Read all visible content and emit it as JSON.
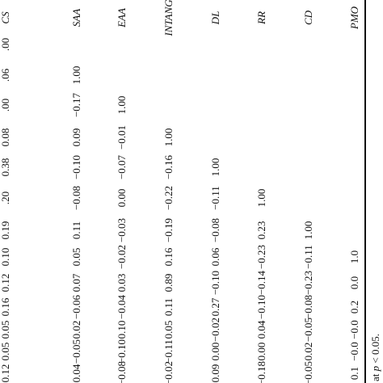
{
  "table": {
    "header": [
      "CS",
      "SAA",
      "EAA",
      "INTANG",
      "DL",
      "RR",
      "CD",
      "PMO"
    ],
    "rows": [
      [
        ".00"
      ],
      [
        ".06",
        "1.00"
      ],
      [
        ".00",
        "−0.17",
        "1.00"
      ],
      [
        "0.08",
        "0.09",
        "−0.01",
        "1.00"
      ],
      [
        "0.38",
        "−0.10",
        "−0.07",
        "−0.16",
        "1.00"
      ],
      [
        ".20",
        "−0.08",
        "0.00",
        "−0.22",
        "−0.11",
        "1.00"
      ],
      [
        "0.19",
        "0.11",
        "−0.03",
        "−0.19",
        "−0.08",
        "0.23",
        "1.00"
      ],
      [
        "0.10",
        "0.05",
        "−0.02",
        "0.16",
        "0.06",
        "−0.23",
        "−0.11",
        "1.0"
      ],
      [
        "0.12",
        "0.07",
        "0.03",
        "0.89",
        "−0.10",
        "−0.14",
        "−0.23",
        "0.0"
      ],
      [
        "0.16",
        "−0.06",
        "−0.04",
        "0.11",
        "0.27",
        "−0.10",
        "−0.08",
        "0.2"
      ],
      [
        "0.05",
        "0.02",
        "0.10",
        "0.05",
        "−0.02",
        "0.04",
        "−0.05",
        "−0.0"
      ],
      [
        "0.05",
        "−0.05",
        "−0.10",
        "−0.11",
        "0.00",
        "0.00",
        "0.02",
        "−0.0"
      ],
      [
        "0.12",
        "0.04",
        "−0.08",
        "−0.02",
        "0.09",
        "−0.18",
        "−0.05",
        "0.1"
      ]
    ]
  },
  "footnote": {
    "prefix": "at",
    "variable": "p",
    "rest": "< 0.05."
  }
}
